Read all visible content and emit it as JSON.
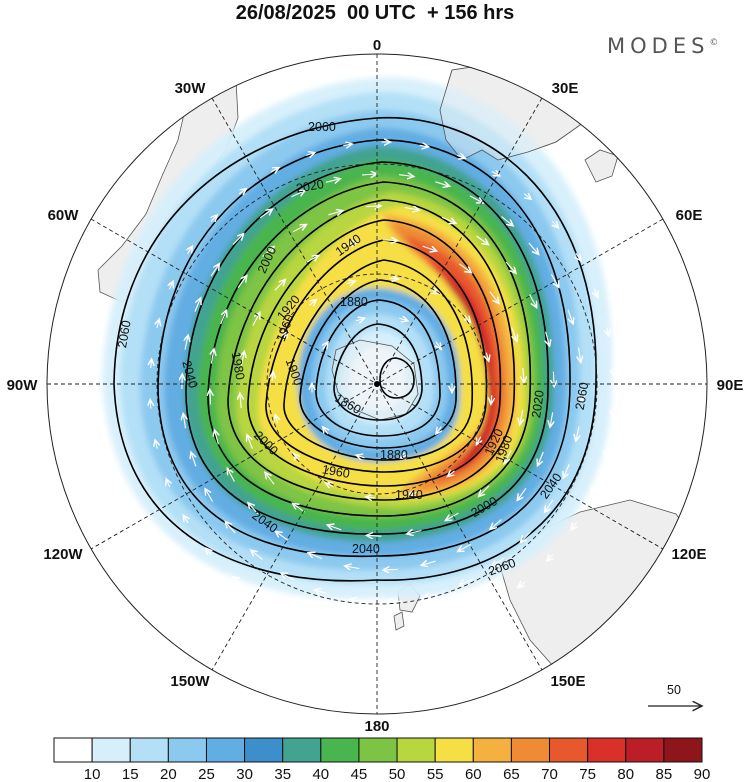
{
  "header": {
    "title": "26/08/2025  00 UTC  + 156 hrs",
    "brand": "MODES",
    "brand_mark": "©"
  },
  "map": {
    "projection": "polar-stereographic-south",
    "longitude_labels": [
      "0",
      "30E",
      "60E",
      "90E",
      "120E",
      "150E",
      "180",
      "150W",
      "120W",
      "90W",
      "60W",
      "30W"
    ],
    "contour_labels": [
      "2060",
      "2060",
      "2060",
      "2060",
      "2040",
      "2040",
      "2040",
      "2040",
      "2020",
      "2020",
      "2000",
      "2000",
      "2000",
      "1980",
      "1980",
      "1960",
      "1960",
      "1940",
      "1940",
      "1920",
      "1920",
      "1900",
      "1880",
      "1880",
      "1860"
    ]
  },
  "vector_key": {
    "value": "50"
  },
  "colorbar": {
    "labels": [
      "10",
      "15",
      "20",
      "25",
      "30",
      "35",
      "40",
      "45",
      "50",
      "55",
      "60",
      "65",
      "70",
      "75",
      "80",
      "85",
      "90"
    ],
    "colors": [
      "#ffffff",
      "#d6effb",
      "#b3e0f7",
      "#8cc9ef",
      "#62ade2",
      "#3c8fcb",
      "#42a390",
      "#49b54e",
      "#7ec444",
      "#b8d640",
      "#f5df45",
      "#f4b13f",
      "#ee8b34",
      "#e8582d",
      "#d9302a",
      "#bb1e26",
      "#8e1519"
    ]
  }
}
